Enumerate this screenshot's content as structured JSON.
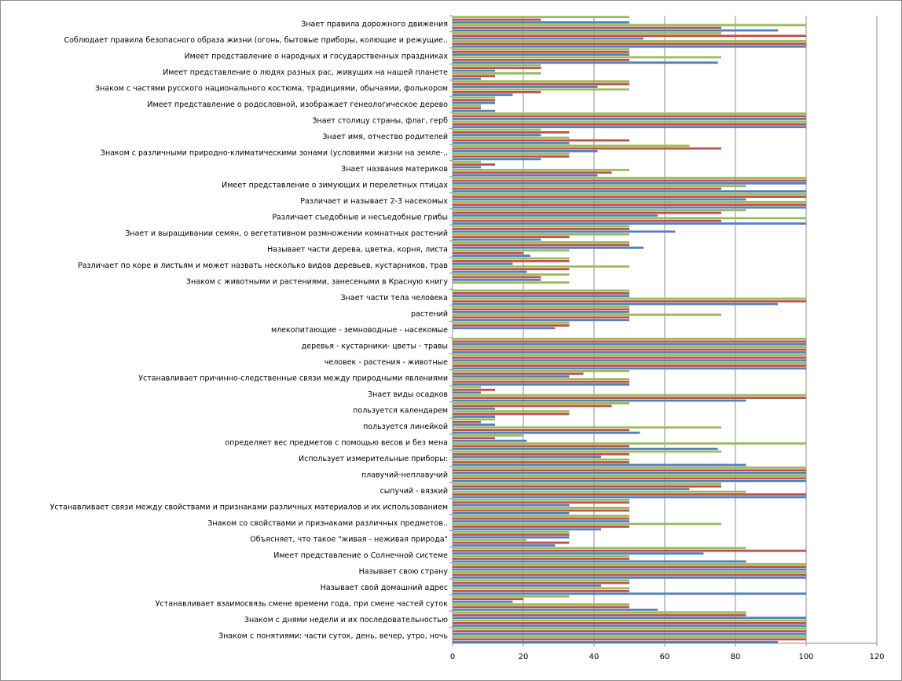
{
  "chart_data": {
    "type": "bar",
    "orientation": "horizontal",
    "xlim": [
      0,
      120
    ],
    "xticks": [
      0,
      20,
      40,
      60,
      80,
      100,
      120
    ],
    "grid": true,
    "legend": "none",
    "colors": [
      "#4f81bd",
      "#c0504d",
      "#9bbb59"
    ],
    "categories": [
      "Знаком с понятиями: части суток, день, вечер, утро, ночь",
      "Знаком с днями недели и их последовательностью",
      "Устанавливает взаимосвязь смене времени года, при смене частей суток",
      "Называет свой домашний адрес",
      "Называет свою страну",
      "Имеет представление о Солнечной системе",
      "Объясняет, что такое \"живая - неживая природа\"",
      "Знаком со свойствами и признаками различных предметов..",
      "Устанавливает связи между свойствами и признаками различных материалов и их использованием",
      "сыпучий - вязкий",
      "плавучий-неплавучий",
      "Использует измерительные приборы:",
      "определяет вес предметов с помощью весов и без мена",
      "пользуется линейкой",
      "пользуется календарем",
      "Знает виды осадков",
      "Устанавливает причинно-следственные связи между природными явлениями",
      "человек - растения - животные",
      "деревья - кустарники- цветы - травы",
      "млекопитающие - земноводные - насекомые",
      "растений",
      "Знает части тела человека",
      "Знаком с животными и растениями, занесеными в Красную книгу",
      "Различает по коре и листьям и может назвать несколько видов деревьев, кустарников, трав",
      "Называет части дерева, цветка, корня, листа",
      "Знает и выращивании семян, о вегетативном размножении комнатных растений",
      "Различает съедобные и несъедобные грибы",
      "Различает и называет 2-3 насекомых",
      "Имеет представление о зимующих и перелетных птицах",
      "Знает названия материков",
      "Знаком с различными природно-климатическими зонами (условиями жизни на земле-..",
      "Знает имя, отчество родителей",
      "Знает столицу страны, флаг, герб",
      "Имеет представление о родословной, изображает генеологическое дерево",
      "Знаком с частями русского национального костюма, традициями, обычаями, фолькором",
      "Имеет представление о людях разных рас, живущих на нашей планете",
      "Имеет представление о народных и государственных праздниках",
      "Соблюдает правила безопасного образа жизни (огонь, бытовые приборы, колющие и режущие..",
      "Знает правила дорожного движения"
    ],
    "category_values": [
      [
        [
          92,
          100,
          100
        ],
        [
          100,
          100,
          100
        ]
      ],
      [
        [
          100,
          100,
          100
        ],
        [
          100,
          83,
          83
        ]
      ],
      [
        [
          58,
          50,
          50
        ],
        [
          17,
          20,
          33
        ]
      ],
      [
        [
          100,
          50,
          50
        ],
        [
          42,
          50,
          50
        ]
      ],
      [
        [
          100,
          100,
          100
        ],
        [
          100,
          100,
          100
        ]
      ],
      [
        [
          83,
          50,
          50
        ],
        [
          71,
          100,
          83
        ]
      ],
      [
        [
          29,
          33,
          21
        ],
        [
          33,
          33,
          33
        ]
      ],
      [
        [
          42,
          50,
          76
        ],
        [
          50,
          50,
          50
        ]
      ],
      [
        [
          33,
          50,
          50
        ],
        [
          33,
          50,
          50
        ]
      ],
      [
        [
          100,
          100,
          83
        ],
        [
          67,
          76,
          76
        ]
      ],
      [
        [
          100,
          100,
          100
        ],
        [
          100,
          100,
          100
        ]
      ],
      [
        [
          83,
          50,
          50
        ],
        [
          42,
          50,
          76
        ]
      ],
      [
        [
          75,
          50,
          100
        ],
        [
          21,
          12,
          20
        ]
      ],
      [
        [
          53,
          50,
          76
        ],
        [
          12,
          8,
          12
        ]
      ],
      [
        [
          12,
          33,
          33
        ],
        [
          12,
          45,
          50
        ]
      ],
      [
        [
          83,
          100,
          100
        ],
        [
          8,
          12,
          8
        ]
      ],
      [
        [
          50,
          50,
          50
        ],
        [
          33,
          37,
          50
        ]
      ],
      [
        [
          100,
          100,
          100
        ],
        [
          100,
          100,
          100
        ]
      ],
      [
        [
          100,
          100,
          100
        ],
        [
          100,
          100,
          100
        ]
      ],
      [
        [
          0,
          0,
          0
        ],
        [
          29,
          33,
          33
        ]
      ],
      [
        [
          50,
          50,
          76
        ],
        [
          50,
          50,
          50
        ]
      ],
      [
        [
          92,
          100,
          100
        ],
        [
          50,
          50,
          50
        ]
      ],
      [
        [
          0,
          0,
          33
        ],
        [
          25,
          25,
          33
        ]
      ],
      [
        [
          21,
          33,
          50
        ],
        [
          17,
          33,
          33
        ]
      ],
      [
        [
          22,
          20,
          33
        ],
        [
          54,
          50,
          50
        ]
      ],
      [
        [
          25,
          33,
          50
        ],
        [
          63,
          50,
          50
        ]
      ],
      [
        [
          100,
          76,
          100
        ],
        [
          58,
          76,
          83
        ]
      ],
      [
        [
          100,
          100,
          100
        ],
        [
          83,
          100,
          100
        ]
      ],
      [
        [
          100,
          76,
          83
        ],
        [
          100,
          100,
          100
        ]
      ],
      [
        [
          41,
          45,
          50
        ],
        [
          8,
          12,
          8
        ]
      ],
      [
        [
          25,
          33,
          33
        ],
        [
          41,
          76,
          67
        ]
      ],
      [
        [
          33,
          50,
          33
        ],
        [
          25,
          33,
          25
        ]
      ],
      [
        [
          100,
          100,
          100
        ],
        [
          100,
          100,
          100
        ]
      ],
      [
        [
          12,
          8,
          8
        ],
        [
          12,
          12,
          12
        ]
      ],
      [
        [
          17,
          25,
          50
        ],
        [
          41,
          50,
          50
        ]
      ],
      [
        [
          8,
          12,
          25
        ],
        [
          12,
          25,
          25
        ]
      ],
      [
        [
          75,
          50,
          76
        ],
        [
          50,
          50,
          50
        ]
      ],
      [
        [
          100,
          100,
          100
        ],
        [
          54,
          100,
          76
        ]
      ],
      [
        [
          92,
          76,
          100
        ],
        [
          50,
          25,
          50
        ]
      ]
    ]
  }
}
